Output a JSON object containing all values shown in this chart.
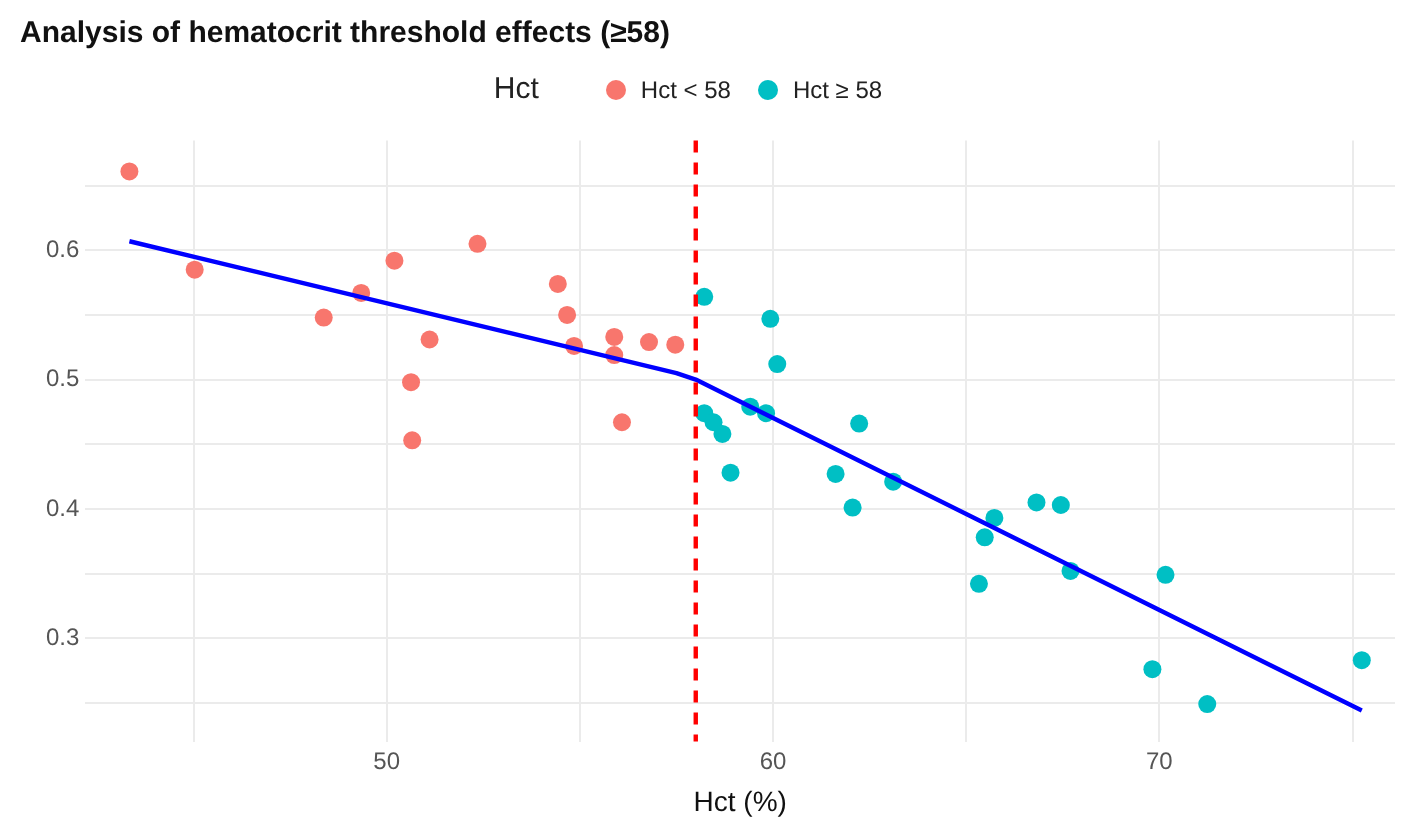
{
  "chart_data": {
    "type": "scatter",
    "title": "Analysis of hematocrit threshold effects (≥58)",
    "xlabel": "Hct (%)",
    "legend_title": "Hct",
    "legend": "top",
    "grid": true,
    "marker": "circle",
    "xlim": [
      42.2,
      76.1
    ],
    "ylim": [
      0.22,
      0.685
    ],
    "xticks": [
      {
        "value": 45,
        "label": null
      },
      50,
      {
        "value": 55,
        "label": null
      },
      60,
      {
        "value": 65,
        "label": null
      },
      70,
      {
        "value": 75,
        "label": null
      }
    ],
    "yticks": [
      {
        "value": 0.25,
        "label": null
      },
      0.3,
      {
        "value": 0.35,
        "label": null
      },
      0.4,
      {
        "value": 0.45,
        "label": null
      },
      0.5,
      {
        "value": 0.55,
        "label": null
      },
      0.6,
      {
        "value": 0.65,
        "label": null
      }
    ],
    "ref_lines": [
      {
        "axis": "x",
        "value": 58,
        "color": "#ff0000",
        "line_style": "dashed"
      }
    ],
    "series": [
      {
        "name": "Hct < 58",
        "color": "#f8766d",
        "x": [
          43.34,
          45.03,
          48.37,
          49.34,
          50.2,
          52.35,
          51.11,
          50.63,
          50.66,
          54.43,
          54.67,
          54.85,
          55.89,
          55.89,
          56.09,
          56.79,
          57.47
        ],
        "values": [
          0.661,
          0.585,
          0.548,
          0.567,
          0.592,
          0.605,
          0.531,
          0.498,
          0.453,
          0.574,
          0.55,
          0.526,
          0.533,
          0.519,
          0.467,
          0.529,
          0.527
        ]
      },
      {
        "name": "Hct ≥ 58",
        "color": "#00bfc4",
        "x": [
          58.22,
          59.93,
          60.11,
          58.22,
          58.46,
          58.69,
          58.9,
          59.41,
          59.82,
          62.23,
          61.62,
          62.06,
          63.11,
          66.82,
          67.45,
          65.73,
          65.48,
          65.33,
          67.7,
          70.16,
          69.82,
          71.24,
          75.24
        ],
        "values": [
          0.564,
          0.547,
          0.512,
          0.474,
          0.467,
          0.458,
          0.428,
          0.479,
          0.474,
          0.466,
          0.427,
          0.401,
          0.421,
          0.405,
          0.403,
          0.393,
          0.378,
          0.342,
          0.352,
          0.349,
          0.276,
          0.249,
          0.283
        ]
      },
      {
        "type": "line",
        "color": "#0000ff",
        "marker": "none",
        "x": [
          43.34,
          57.5,
          58,
          75.24
        ],
        "values": [
          0.607,
          0.505,
          0.5,
          0.244
        ]
      }
    ]
  }
}
